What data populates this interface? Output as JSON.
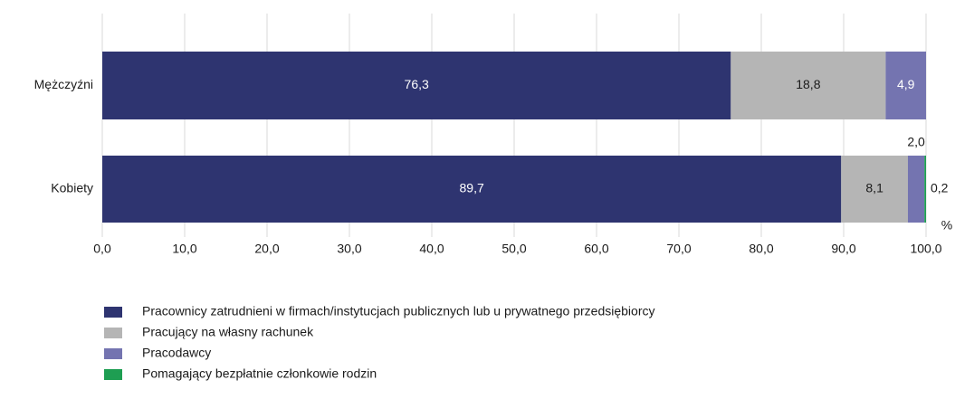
{
  "chart_data": {
    "type": "stacked-bar-horizontal",
    "categories": [
      "Mężczyźni",
      "Kobiety"
    ],
    "series": [
      {
        "name": "Pracownicy zatrudnieni w firmach/instytucjach publicznych lub u prywatnego przedsiębiorcy",
        "color": "#2e3470",
        "values": [
          76.3,
          89.7
        ],
        "value_labels": [
          "76,3",
          "89,7"
        ]
      },
      {
        "name": "Pracujący na własny rachunek",
        "color": "#b5b5b5",
        "values": [
          18.8,
          8.1
        ],
        "value_labels": [
          "18,8",
          "8,1"
        ]
      },
      {
        "name": "Pracodawcy",
        "color": "#7474b0",
        "values": [
          4.9,
          2.0
        ],
        "value_labels": [
          "4,9",
          "2,0"
        ]
      },
      {
        "name": "Pomagający bezpłatnie członkowie rodzin",
        "color": "#1e9e52",
        "values": [
          null,
          0.2
        ],
        "value_labels": [
          null,
          "0,2"
        ]
      }
    ],
    "xlim": [
      0,
      100
    ],
    "xticks": [
      {
        "value": 0,
        "label": "0,0"
      },
      {
        "value": 10,
        "label": "10,0"
      },
      {
        "value": 20,
        "label": "20,0"
      },
      {
        "value": 30,
        "label": "30,0"
      },
      {
        "value": 40,
        "label": "40,0"
      },
      {
        "value": 50,
        "label": "50,0"
      },
      {
        "value": 60,
        "label": "60,0"
      },
      {
        "value": 70,
        "label": "70,0"
      },
      {
        "value": 80,
        "label": "80,0"
      },
      {
        "value": 90,
        "label": "90,0"
      },
      {
        "value": 100,
        "label": "100,0"
      }
    ],
    "x_label": "%",
    "grid": true,
    "legend": "bottom"
  }
}
